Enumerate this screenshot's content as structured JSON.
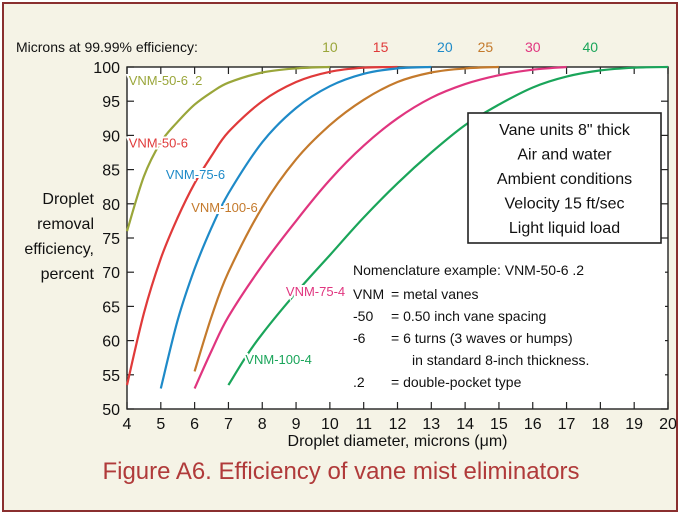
{
  "chart_data": {
    "type": "line",
    "xlabel": "Droplet diameter, microns (μm)",
    "ylabel_lines": [
      "Droplet",
      "removal",
      "efficiency,",
      "percent"
    ],
    "xlim": [
      4,
      20
    ],
    "ylim": [
      50,
      100
    ],
    "xticks": [
      4,
      5,
      6,
      7,
      8,
      9,
      10,
      11,
      12,
      13,
      14,
      15,
      16,
      17,
      18,
      19,
      20
    ],
    "yticks": [
      50,
      55,
      60,
      65,
      70,
      75,
      80,
      85,
      90,
      95,
      100
    ],
    "grid": false,
    "header": {
      "label": "Microns at 99.99% efficiency:",
      "values": [
        {
          "text": "10",
          "color": "#9aa63a",
          "x": 10
        },
        {
          "text": "15",
          "color": "#e03a3a",
          "x": 11.5
        },
        {
          "text": "20",
          "color": "#1e8ac8",
          "x": 13.4
        },
        {
          "text": "25",
          "color": "#c47a2c",
          "x": 14.6
        },
        {
          "text": "30",
          "color": "#e0357f",
          "x": 16
        },
        {
          "text": "40",
          "color": "#1aa55a",
          "x": 17.7
        }
      ]
    },
    "series": [
      {
        "name": "VNM-50-6 .2",
        "color": "#9aa63a",
        "label_at": [
          4.05,
          97.4
        ],
        "points": [
          [
            4,
            76
          ],
          [
            4.5,
            84
          ],
          [
            5,
            89
          ],
          [
            5.5,
            92
          ],
          [
            6,
            94.5
          ],
          [
            6.5,
            96.3
          ],
          [
            7,
            97.7
          ],
          [
            8,
            99.2
          ],
          [
            9,
            99.8
          ],
          [
            10,
            100
          ]
        ]
      },
      {
        "name": "VNM-50-6",
        "color": "#e03a3a",
        "label_at": [
          4.05,
          88.2
        ],
        "points": [
          [
            4,
            53.5
          ],
          [
            4.5,
            64
          ],
          [
            5,
            72
          ],
          [
            5.5,
            78
          ],
          [
            6,
            83
          ],
          [
            6.5,
            87
          ],
          [
            7,
            90.5
          ],
          [
            8,
            95
          ],
          [
            9,
            97.8
          ],
          [
            10,
            99.3
          ],
          [
            11,
            99.9
          ],
          [
            12,
            100
          ]
        ]
      },
      {
        "name": "VNM-75-6",
        "color": "#1e8ac8",
        "label_at": [
          5.15,
          83.6
        ],
        "points": [
          [
            5,
            53
          ],
          [
            5.5,
            63
          ],
          [
            6,
            70.5
          ],
          [
            6.5,
            76.5
          ],
          [
            7,
            81.5
          ],
          [
            8,
            89
          ],
          [
            9,
            94
          ],
          [
            10,
            97.2
          ],
          [
            11,
            99
          ],
          [
            12,
            99.8
          ],
          [
            13,
            100
          ]
        ]
      },
      {
        "name": "VNM-100-6",
        "color": "#c47a2c",
        "label_at": [
          5.9,
          78.8
        ],
        "points": [
          [
            6,
            55.5
          ],
          [
            6.5,
            63.5
          ],
          [
            7,
            70
          ],
          [
            8,
            79.5
          ],
          [
            9,
            86.5
          ],
          [
            10,
            91.5
          ],
          [
            11,
            95.2
          ],
          [
            12,
            97.8
          ],
          [
            13,
            99.2
          ],
          [
            14,
            99.8
          ],
          [
            15,
            100
          ]
        ]
      },
      {
        "name": "VNM-75-4",
        "color": "#e0357f",
        "label_at": [
          8.7,
          66.5
        ],
        "points": [
          [
            6,
            53
          ],
          [
            6.5,
            58.5
          ],
          [
            7,
            63.5
          ],
          [
            8,
            71
          ],
          [
            9,
            77.5
          ],
          [
            10,
            83.5
          ],
          [
            11,
            88.5
          ],
          [
            12,
            92.5
          ],
          [
            13,
            95.5
          ],
          [
            14,
            97.5
          ],
          [
            15,
            98.8
          ],
          [
            16,
            99.6
          ],
          [
            17,
            100
          ]
        ]
      },
      {
        "name": "VNM-100-4",
        "color": "#1aa55a",
        "label_at": [
          7.5,
          56.6
        ],
        "points": [
          [
            7,
            53.5
          ],
          [
            7.5,
            57.5
          ],
          [
            8,
            61
          ],
          [
            9,
            67
          ],
          [
            10,
            72.5
          ],
          [
            11,
            78
          ],
          [
            12,
            83
          ],
          [
            13,
            87.5
          ],
          [
            14,
            91.5
          ],
          [
            15,
            94.5
          ],
          [
            16,
            97
          ],
          [
            17,
            98.6
          ],
          [
            18,
            99.5
          ],
          [
            19,
            99.9
          ],
          [
            20,
            100
          ]
        ]
      }
    ],
    "conditions_box": [
      "Vane units 8\" thick",
      "Air and water",
      "Ambient conditions",
      "Velocity 15 ft/sec",
      "Light liquid load"
    ],
    "nomenclature": {
      "title": "Nomenclature example: VNM-50-6 .2",
      "rows": [
        {
          "code": "VNM",
          "desc": "= metal vanes"
        },
        {
          "code": "-50",
          "desc": "= 0.50 inch vane spacing"
        },
        {
          "code": "-6",
          "desc": "= 6 turns (3 waves or humps)"
        },
        {
          "code": "",
          "desc": "in standard 8-inch thickness."
        },
        {
          "code": ".2",
          "desc": "= double-pocket type"
        }
      ]
    }
  },
  "caption": "Figure A6. Efficiency of vane mist eliminators"
}
